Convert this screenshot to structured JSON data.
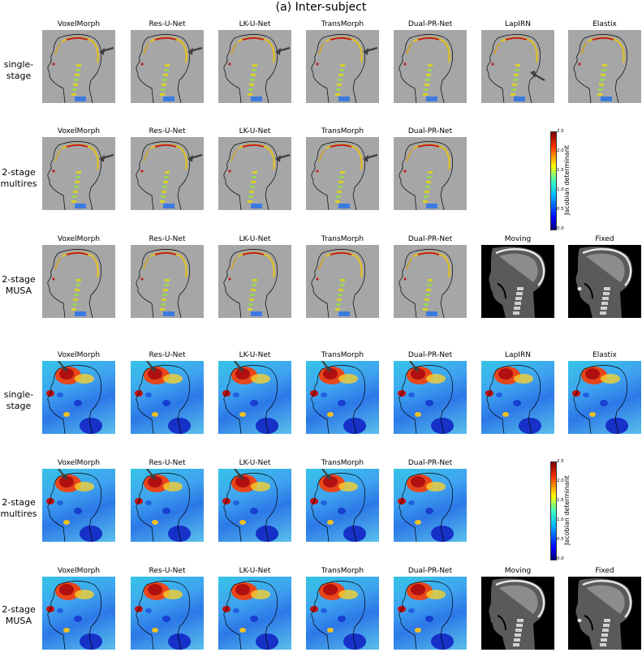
{
  "title": "(a) Inter-subject",
  "row_labels": {
    "single_stage": "single-\nstage",
    "two_stage_multires": "2-stage\nmultires",
    "two_stage_musa": "2-stage\nMUSA"
  },
  "methods": {
    "voxelmorph": "VoxelMorph",
    "resunet": "Res-U-Net",
    "lkunet": "LK-U-Net",
    "transmorph": "TransMorph",
    "dualprnet": "Dual-PR-Net",
    "lapirn": "LapIRN",
    "elastix": "Elastix",
    "moving": "Moving",
    "fixed": "Fixed"
  },
  "colorbar": {
    "label": "Jacobian determinant",
    "ticks": [
      "2.5",
      "2.0",
      "1.5",
      "1.0",
      "0.5",
      "0.0"
    ]
  },
  "colors": {
    "jacobian_background": "#a6a6a6",
    "contour": "#000000",
    "arrow": "#404040"
  }
}
